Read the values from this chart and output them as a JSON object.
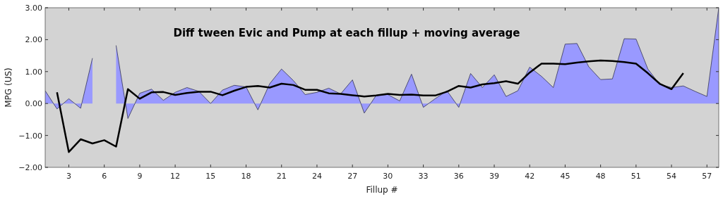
{
  "chart_data": {
    "type": "area",
    "title": "Diff tween Evic and Pump at each fillup + moving average",
    "xlabel": "Fillup #",
    "ylabel": "MPG (US)",
    "xlim": [
      1,
      58
    ],
    "xticks": [
      3,
      6,
      9,
      12,
      15,
      18,
      21,
      24,
      27,
      30,
      33,
      36,
      39,
      42,
      45,
      48,
      51,
      54,
      57
    ],
    "ylim": [
      -2,
      3
    ],
    "yticks": [
      {
        "value": -2,
        "label": "−2.00"
      },
      {
        "value": -1,
        "label": "−1.00"
      },
      {
        "value": 0,
        "label": "0.00"
      },
      {
        "value": 1,
        "label": "1.00"
      },
      {
        "value": 2,
        "label": "2.00"
      },
      {
        "value": 3,
        "label": "3.00"
      }
    ],
    "grid": false,
    "series": [
      {
        "color": "#9999ff",
        "x": [
          1,
          2,
          3,
          4,
          5,
          6,
          7,
          8,
          9,
          10,
          11,
          12,
          13,
          14,
          15,
          16,
          17,
          18,
          19,
          20,
          21,
          22,
          23,
          24,
          25,
          26,
          27,
          28,
          29,
          30,
          31,
          32,
          33,
          34,
          35,
          36,
          37,
          38,
          39,
          40,
          41,
          42,
          43,
          44,
          45,
          46,
          47,
          48,
          49,
          50,
          51,
          52,
          53,
          54,
          55,
          56,
          57,
          58
        ],
        "values": [
          0.4,
          -0.17,
          0.15,
          -0.15,
          1.42,
          null,
          1.82,
          -0.47,
          0.32,
          0.45,
          0.1,
          0.35,
          0.5,
          0.38,
          0.0,
          0.42,
          0.57,
          0.52,
          -0.2,
          0.62,
          1.08,
          0.72,
          0.28,
          0.35,
          0.48,
          0.3,
          0.74,
          -0.3,
          0.25,
          0.28,
          0.08,
          0.92,
          -0.12,
          0.15,
          0.4,
          -0.12,
          0.94,
          0.5,
          0.9,
          0.22,
          0.4,
          1.14,
          0.85,
          0.5,
          1.86,
          1.88,
          1.15,
          0.75,
          0.77,
          2.03,
          2.02,
          1.08,
          0.6,
          0.5,
          0.55,
          0.38,
          0.22,
          3.0
        ]
      },
      {
        "type": "line",
        "color": "#000000",
        "x": [
          2,
          3,
          4,
          5,
          6,
          7,
          8,
          9,
          10,
          11,
          12,
          13,
          14,
          15,
          16,
          17,
          18,
          19,
          20,
          21,
          22,
          23,
          24,
          25,
          26,
          27,
          28,
          29,
          30,
          31,
          32,
          33,
          34,
          35,
          36,
          37,
          38,
          39,
          40,
          41,
          42,
          43,
          44,
          45,
          46,
          47,
          48,
          49,
          50,
          51,
          52,
          53,
          54,
          55
        ],
        "values": [
          0.35,
          -1.52,
          -1.12,
          -1.25,
          -1.15,
          -1.35,
          0.45,
          0.15,
          0.35,
          0.36,
          0.27,
          0.33,
          0.37,
          0.37,
          0.26,
          0.4,
          0.52,
          0.55,
          0.5,
          0.62,
          0.58,
          0.43,
          0.43,
          0.32,
          0.3,
          0.26,
          0.22,
          0.25,
          0.3,
          0.27,
          0.28,
          0.25,
          0.25,
          0.37,
          0.55,
          0.5,
          0.6,
          0.64,
          0.7,
          0.62,
          0.97,
          1.25,
          1.25,
          1.23,
          1.28,
          1.32,
          1.35,
          1.33,
          1.3,
          1.25,
          0.95,
          0.62,
          0.45,
          0.95
        ]
      }
    ]
  }
}
